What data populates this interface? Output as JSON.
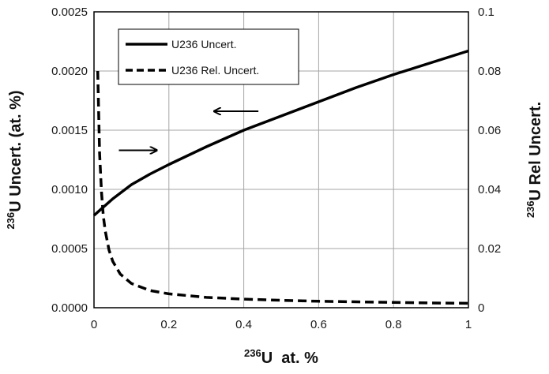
{
  "chart_data": {
    "type": "line",
    "xlabel": {
      "sup": "236",
      "text": "U  at. %"
    },
    "ylabel_left": {
      "sup": "236",
      "text": "U Uncert. (at. %)"
    },
    "ylabel_right": {
      "sup": "236",
      "text": "U Rel Uncert."
    },
    "xlim": [
      0,
      1
    ],
    "ylim_left": [
      0,
      0.0025
    ],
    "ylim_right": [
      0,
      0.1
    ],
    "x_ticks": [
      {
        "v": 0,
        "label": "0"
      },
      {
        "v": 0.2,
        "label": "0.2"
      },
      {
        "v": 0.4,
        "label": "0.4"
      },
      {
        "v": 0.6,
        "label": "0.6"
      },
      {
        "v": 0.8,
        "label": "0.8"
      },
      {
        "v": 1,
        "label": "1"
      }
    ],
    "y_left_ticks": [
      {
        "v": 0,
        "label": "0.0000"
      },
      {
        "v": 0.0005,
        "label": "0.0005"
      },
      {
        "v": 0.001,
        "label": "0.0010"
      },
      {
        "v": 0.0015,
        "label": "0.0015"
      },
      {
        "v": 0.002,
        "label": "0.0020"
      },
      {
        "v": 0.0025,
        "label": "0.0025"
      }
    ],
    "y_right_ticks": [
      {
        "v": 0,
        "label": "0"
      },
      {
        "v": 0.02,
        "label": "0.02"
      },
      {
        "v": 0.04,
        "label": "0.04"
      },
      {
        "v": 0.06,
        "label": "0.06"
      },
      {
        "v": 0.08,
        "label": "0.08"
      },
      {
        "v": 0.1,
        "label": "0.1"
      }
    ],
    "grid": true,
    "legend_position": "top-left",
    "series": [
      {
        "name": "U236 Uncert.",
        "axis": "left",
        "style": "solid",
        "color": "#000000",
        "x": [
          0.0,
          0.05,
          0.1,
          0.15,
          0.2,
          0.3,
          0.4,
          0.5,
          0.6,
          0.7,
          0.8,
          0.9,
          1.0
        ],
        "y": [
          0.00078,
          0.00092,
          0.00104,
          0.00113,
          0.00121,
          0.00136,
          0.0015,
          0.00162,
          0.00174,
          0.00186,
          0.00197,
          0.00207,
          0.00217
        ]
      },
      {
        "name": "U236 Rel. Uncert.",
        "axis": "right",
        "style": "dashed",
        "color": "#000000",
        "x": [
          0.01,
          0.015,
          0.02,
          0.025,
          0.03,
          0.04,
          0.05,
          0.07,
          0.1,
          0.15,
          0.2,
          0.3,
          0.4,
          0.5,
          0.6,
          0.7,
          0.8,
          0.9,
          1.0
        ],
        "y": [
          0.08,
          0.052,
          0.039,
          0.031,
          0.026,
          0.0195,
          0.0157,
          0.0114,
          0.0082,
          0.0058,
          0.0047,
          0.0035,
          0.0029,
          0.0025,
          0.0022,
          0.002,
          0.0018,
          0.0016,
          0.0015
        ]
      }
    ],
    "annotations": [
      {
        "type": "arrow",
        "points_to": "left axis",
        "near_series": "U236 Uncert.",
        "at_x": 0.38,
        "at_y_left": 0.00166
      },
      {
        "type": "arrow",
        "points_to": "right axis",
        "near_series": "U236 Rel. Uncert.",
        "at_x": 0.02,
        "at_y_left": 0.00133
      }
    ]
  }
}
